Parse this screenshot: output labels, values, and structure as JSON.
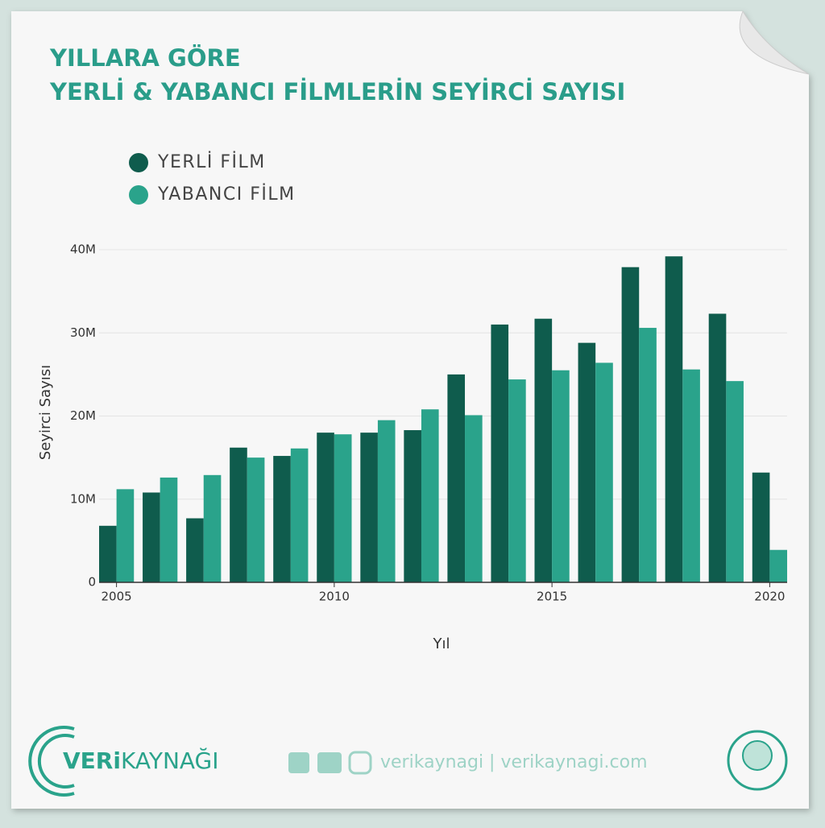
{
  "chart_data": {
    "type": "bar",
    "title": "YILLARA GÖRE",
    "subtitle": "YERLİ & YABANCI FİLMLERİN SEYİRCİ SAYISI",
    "x_label": "Yıl",
    "y_label": "Seyirci Sayısı",
    "x": [
      2005,
      2006,
      2007,
      2008,
      2009,
      2010,
      2011,
      2012,
      2013,
      2014,
      2015,
      2016,
      2017,
      2018,
      2019,
      2020
    ],
    "series": [
      {
        "name": "YERLİ FİLM",
        "color": "#0f5c4d",
        "values": [
          6800000,
          10800000,
          7700000,
          16200000,
          15200000,
          18000000,
          18000000,
          18300000,
          25000000,
          31000000,
          31700000,
          28800000,
          37900000,
          39200000,
          32300000,
          13200000
        ]
      },
      {
        "name": "YABANCI FİLM",
        "color": "#2aa38b",
        "values": [
          11200000,
          12600000,
          12900000,
          15000000,
          16100000,
          17800000,
          19500000,
          20800000,
          20100000,
          24400000,
          25500000,
          26400000,
          30600000,
          25600000,
          24200000,
          3900000
        ]
      }
    ],
    "xlim": [
      2004.6,
      2020.4
    ],
    "xticks": [
      2005,
      2010,
      2015,
      2020
    ],
    "ylim": [
      0,
      40000000
    ],
    "yticks": [
      0,
      {
        "value": 10000000,
        "label": "10M"
      },
      {
        "value": 20000000,
        "label": "20M"
      },
      {
        "value": 30000000,
        "label": "30M"
      },
      {
        "value": 40000000,
        "label": "40M"
      }
    ],
    "grid": true,
    "legend": "top-left"
  },
  "footer": {
    "brand_bold": "VERi",
    "brand": "KAYNAĞI",
    "social": "verikaynagi | verikaynagi.com"
  }
}
